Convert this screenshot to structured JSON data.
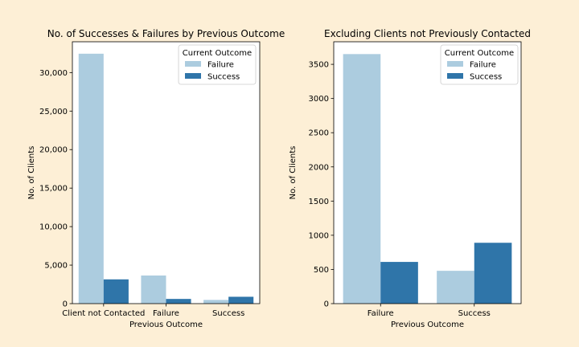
{
  "colors": {
    "failure": "#acccdf",
    "success": "#2f75a9",
    "figure_bg": "#fdefd6",
    "axes_bg": "#ffffff"
  },
  "chart_data": [
    {
      "type": "bar",
      "title": "No. of Successes & Failures by Previous Outcome",
      "xlabel": "Previous Outcome",
      "ylabel": "No. of Clients",
      "categories": [
        "Client not Contacted",
        "Failure",
        "Success"
      ],
      "series": [
        {
          "name": "Failure",
          "values": [
            32450,
            3650,
            480
          ]
        },
        {
          "name": "Success",
          "values": [
            3150,
            610,
            890
          ]
        }
      ],
      "ylim": [
        0,
        34000
      ],
      "yticks": [
        0,
        5000,
        10000,
        15000,
        20000,
        25000,
        30000
      ],
      "ytick_labels": [
        "0",
        "5,000",
        "10,000",
        "15,000",
        "20,000",
        "25,000",
        "30,000"
      ],
      "legend": {
        "title": "Current Outcome",
        "placement": "top-right"
      },
      "grid": false
    },
    {
      "type": "bar",
      "title": "Excluding Clients not Previously Contacted",
      "xlabel": "Previous Outcome",
      "ylabel": "No. of Clients",
      "categories": [
        "Failure",
        "Success"
      ],
      "series": [
        {
          "name": "Failure",
          "values": [
            3650,
            480
          ]
        },
        {
          "name": "Success",
          "values": [
            610,
            890
          ]
        }
      ],
      "ylim": [
        0,
        3830
      ],
      "yticks": [
        0,
        500,
        1000,
        1500,
        2000,
        2500,
        3000,
        3500
      ],
      "ytick_labels": [
        "0",
        "500",
        "1000",
        "1500",
        "2000",
        "2500",
        "3000",
        "3500"
      ],
      "legend": {
        "title": "Current Outcome",
        "placement": "top-right"
      },
      "grid": false
    }
  ]
}
